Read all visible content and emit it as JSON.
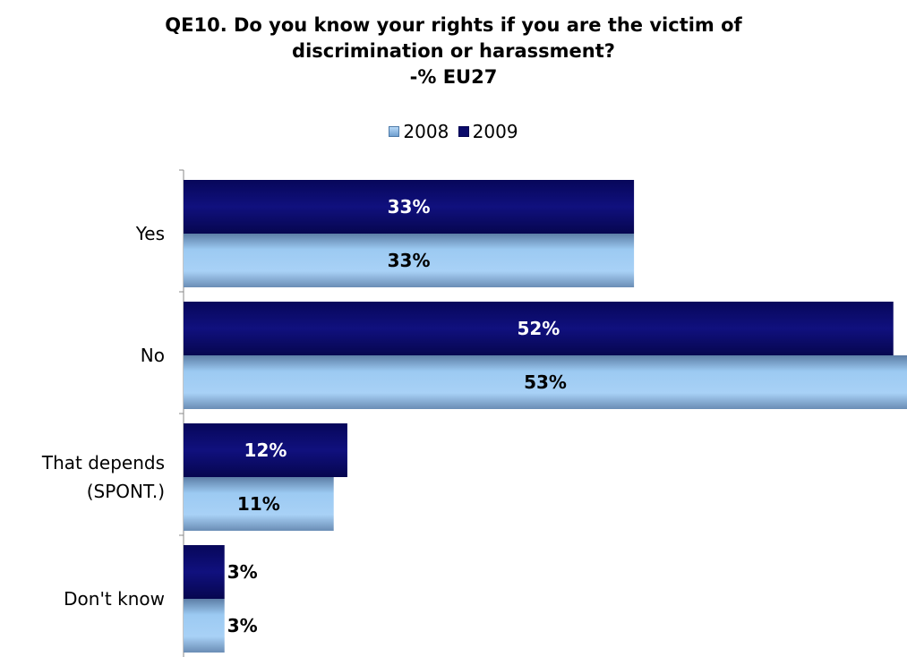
{
  "chart_data": {
    "type": "bar",
    "orientation": "horizontal",
    "title_lines": [
      "QE10. Do you know your rights if you are the victim of",
      "discrimination or harassment?",
      "-% EU27"
    ],
    "categories": [
      {
        "lines": [
          "Yes"
        ]
      },
      {
        "lines": [
          "No"
        ]
      },
      {
        "lines": [
          "That depends",
          "(SPONT.)"
        ]
      },
      {
        "lines": [
          "Don't know"
        ]
      }
    ],
    "series": [
      {
        "name": "2009",
        "values": [
          33,
          52,
          12,
          3
        ],
        "labels": [
          "33%",
          "52%",
          "12%",
          "3%"
        ],
        "color": "#0a0a6a"
      },
      {
        "name": "2008",
        "values": [
          33,
          53,
          11,
          3
        ],
        "labels": [
          "33%",
          "53%",
          "11%",
          "3%"
        ],
        "color": "#8ec0ee"
      }
    ],
    "legend": {
      "position": "top",
      "items": [
        "2008",
        "2009"
      ]
    },
    "xlim": [
      0,
      53
    ],
    "grid": false
  }
}
